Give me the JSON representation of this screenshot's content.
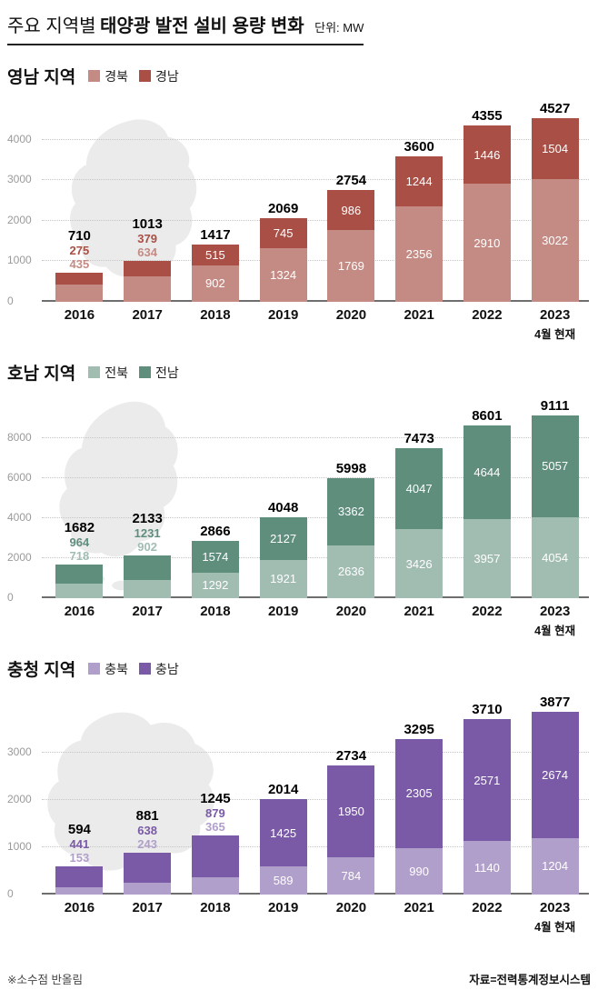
{
  "header": {
    "title_prefix": "주요 지역별",
    "title_bold": "태양광 발전 설비 용량 변화",
    "unit": "단위: MW"
  },
  "footer": {
    "note": "※소수점 반올림",
    "source": "자료=전력통계정보시스템"
  },
  "chart_data": [
    {
      "type": "bar",
      "stacked": true,
      "title": "영남 지역",
      "categories": [
        "2016",
        "2017",
        "2018",
        "2019",
        "2020",
        "2021",
        "2022",
        "2023"
      ],
      "last_category_note": "4월 현재",
      "series": [
        {
          "name": "경북",
          "color": "#c48b84",
          "values": [
            435,
            634,
            902,
            1324,
            1769,
            2356,
            2910,
            3022
          ]
        },
        {
          "name": "경남",
          "color": "#a94f45",
          "values": [
            275,
            379,
            515,
            745,
            986,
            1244,
            1446,
            1504
          ]
        }
      ],
      "totals": [
        710,
        1013,
        1417,
        2069,
        2754,
        3600,
        4355,
        4527
      ],
      "ylim": [
        0,
        4600
      ],
      "yticks": [
        0,
        1000,
        2000,
        3000,
        4000
      ],
      "grid": "dotted",
      "legend_position": "top"
    },
    {
      "type": "bar",
      "stacked": true,
      "title": "호남 지역",
      "categories": [
        "2016",
        "2017",
        "2018",
        "2019",
        "2020",
        "2021",
        "2022",
        "2023"
      ],
      "last_category_note": "4월 현재",
      "series": [
        {
          "name": "전북",
          "color": "#a1bdb1",
          "values": [
            718,
            902,
            1292,
            1921,
            2636,
            3426,
            3957,
            4054
          ]
        },
        {
          "name": "전남",
          "color": "#5f8e7d",
          "values": [
            964,
            1231,
            1574,
            2127,
            3362,
            4047,
            4644,
            5057
          ]
        }
      ],
      "totals": [
        1682,
        2133,
        2866,
        4048,
        5998,
        7473,
        8601,
        9111
      ],
      "ylim": [
        0,
        9300
      ],
      "yticks": [
        0,
        2000,
        4000,
        6000,
        8000
      ],
      "grid": "dotted",
      "legend_position": "top"
    },
    {
      "type": "bar",
      "stacked": true,
      "title": "충청 지역",
      "categories": [
        "2016",
        "2017",
        "2018",
        "2019",
        "2020",
        "2021",
        "2022",
        "2023"
      ],
      "last_category_note": "4월 현재",
      "series": [
        {
          "name": "충북",
          "color": "#b19fcb",
          "values": [
            153,
            243,
            365,
            589,
            784,
            990,
            1140,
            1204
          ]
        },
        {
          "name": "충남",
          "color": "#7a5aa7",
          "values": [
            441,
            638,
            879,
            1425,
            1950,
            2305,
            2571,
            2674
          ]
        }
      ],
      "totals": [
        594,
        881,
        1245,
        2014,
        2734,
        3295,
        3710,
        3877
      ],
      "ylim": [
        0,
        3950
      ],
      "yticks": [
        0,
        1000,
        2000,
        3000
      ],
      "grid": "dotted",
      "legend_position": "top"
    }
  ]
}
